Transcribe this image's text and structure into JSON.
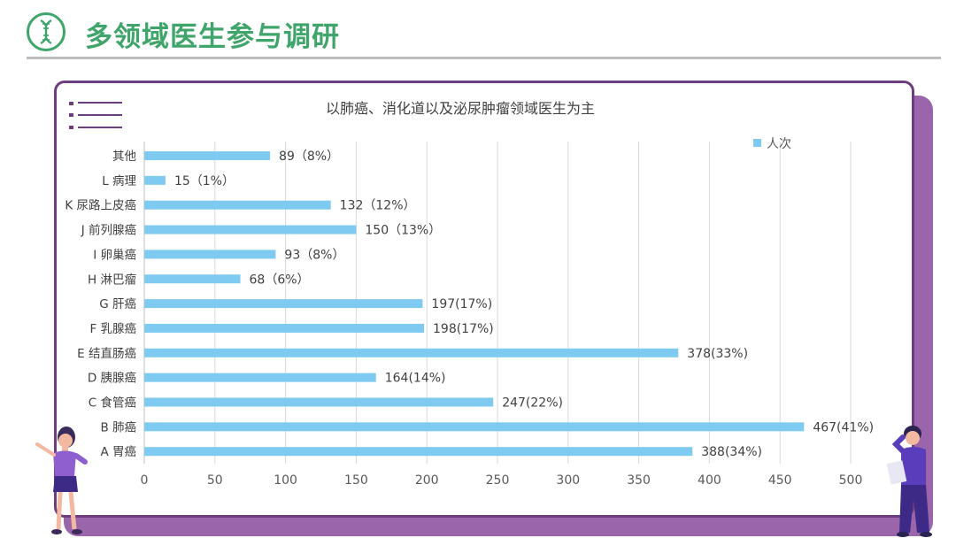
{
  "header": {
    "title": "多领域医生参与调研",
    "icon": "dna-icon",
    "accent_color": "#3fa56a"
  },
  "card": {
    "border_color": "#6e3d80",
    "shadow_color": "#9a65aa"
  },
  "chart_data": {
    "type": "bar",
    "orientation": "horizontal",
    "title": "以肺癌、消化道以及泌尿肿瘤领域医生为主",
    "categories": [
      "其他",
      "L 病理",
      "K 尿路上皮癌",
      "J 前列腺癌",
      "I 卵巢癌",
      "H 淋巴瘤",
      "G 肝癌",
      "F 乳腺癌",
      "E 结直肠癌",
      "D 胰腺癌",
      "C 食管癌",
      "B 肺癌",
      "A 胃癌"
    ],
    "series": [
      {
        "name": "人次",
        "values": [
          89,
          15,
          132,
          150,
          93,
          68,
          197,
          198,
          378,
          164,
          247,
          467,
          388
        ],
        "data_labels": [
          "89（8%）",
          "15（1%）",
          "132（12%）",
          "150（13%）",
          "93（8%）",
          "68（6%）",
          "197(17%)",
          "198(17%)",
          "378(33%)",
          "164(14%)",
          "247(22%)",
          "467(41%)",
          "388(34%)"
        ],
        "color": "#7fcaf0"
      }
    ],
    "xlim": [
      0,
      500
    ],
    "x_ticks": [
      0,
      50,
      100,
      150,
      200,
      250,
      300,
      350,
      400,
      450,
      500
    ],
    "grid": "vertical",
    "legend_position": "top-right"
  }
}
